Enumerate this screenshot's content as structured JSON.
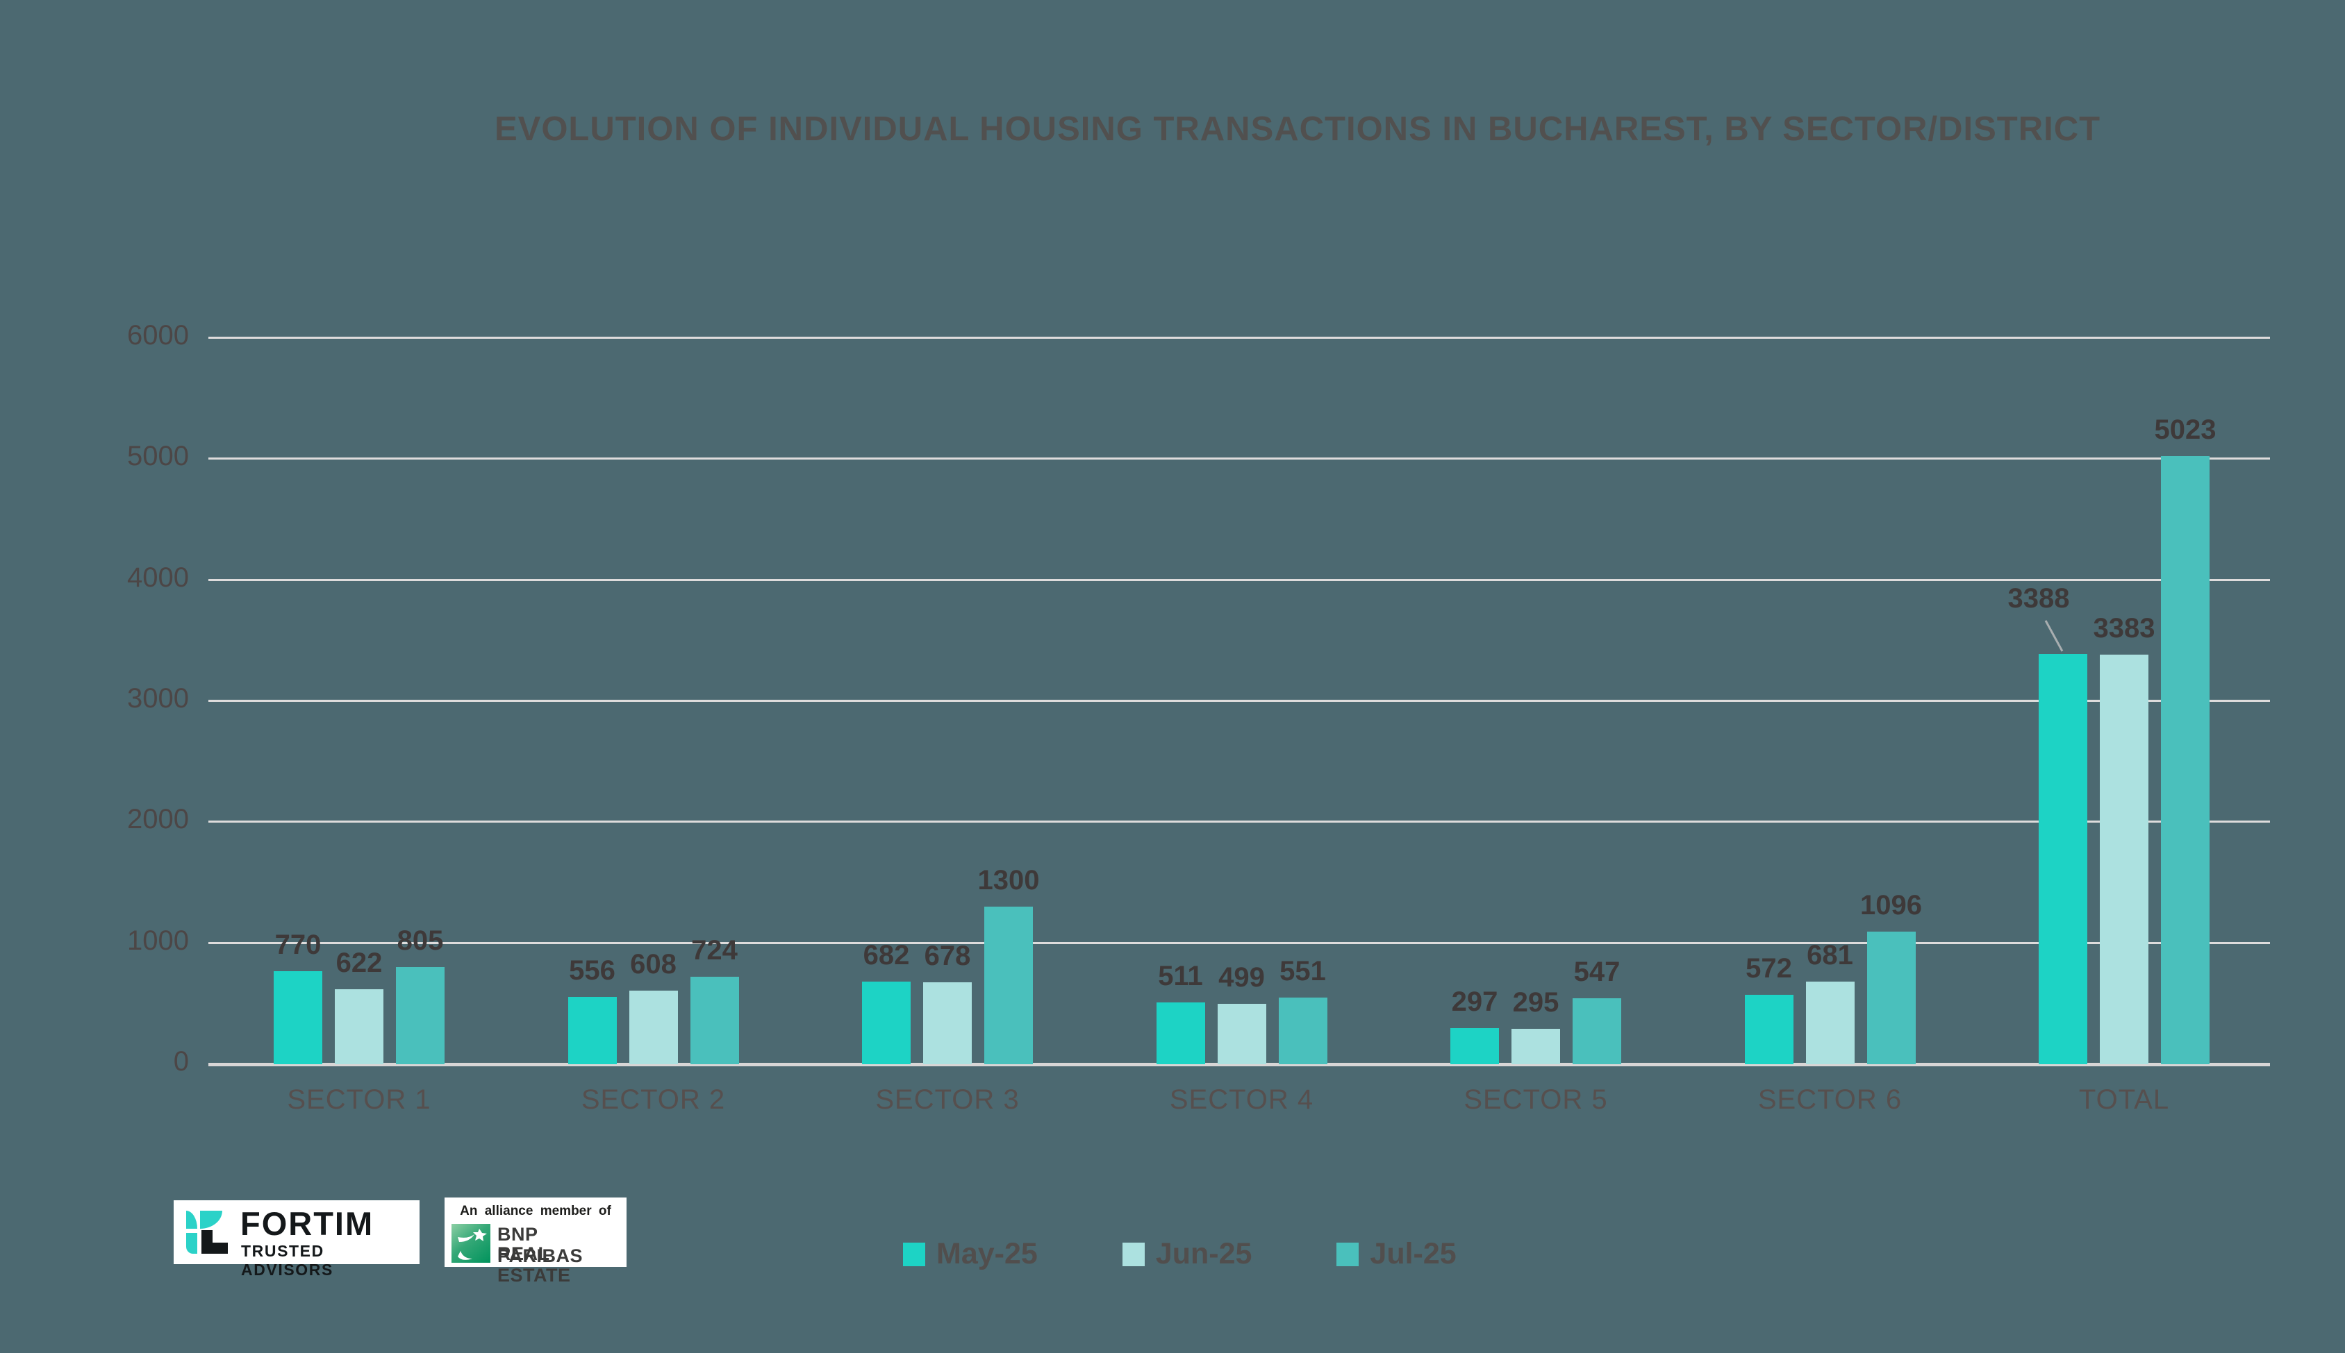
{
  "page": {
    "background_color": "#4C6971"
  },
  "title": {
    "text": "EVOLUTION OF INDIVIDUAL HOUSING TRANSACTIONS IN BUCHAREST, BY SECTOR/DISTRICT",
    "color": "#51504F"
  },
  "chart_data": {
    "type": "bar",
    "title": "EVOLUTION OF INDIVIDUAL HOUSING TRANSACTIONS IN BUCHAREST, BY SECTOR/DISTRICT",
    "categories": [
      "SECTOR 1",
      "SECTOR 2",
      "SECTOR 3",
      "SECTOR 4",
      "SECTOR 5",
      "SECTOR 6",
      "TOTAL"
    ],
    "series": [
      {
        "name": "May-25",
        "color": "#1DD3C5",
        "values": [
          770,
          556,
          682,
          511,
          297,
          572,
          3388
        ]
      },
      {
        "name": "Jun-25",
        "color": "#ACE1E0",
        "values": [
          622,
          608,
          678,
          499,
          295,
          681,
          3383
        ]
      },
      {
        "name": "Jul-25",
        "color": "#4AC0BC",
        "values": [
          805,
          724,
          1300,
          551,
          547,
          1096,
          5023
        ]
      }
    ],
    "ylim": [
      0,
      6000
    ],
    "y_ticks": [
      0,
      1000,
      2000,
      3000,
      4000,
      5000,
      6000
    ],
    "grid": "horizontal",
    "legend_position": "bottom",
    "value_labels": "above each bar",
    "callout": {
      "series": "May-25",
      "category": "TOTAL",
      "value": 3388,
      "style": "label shifted up-left with leader line to bar top"
    }
  },
  "legend": {
    "items": [
      {
        "label": "May-25",
        "color": "#1DD3C5"
      },
      {
        "label": "Jun-25",
        "color": "#ACE1E0"
      },
      {
        "label": "Jul-25",
        "color": "#4AC0BC"
      }
    ]
  },
  "axis_style": {
    "tick_label_color": "#4C4646",
    "category_label_color": "#564F4E",
    "value_label_color": "#3E3939",
    "grid_color": "#DEDCDC",
    "baseline_color": "#D8D6D6",
    "leader_line_color": "#A8AEB0"
  },
  "branding": {
    "fortim": {
      "name": "FORTIM",
      "tagline": "TRUSTED ADVISORS"
    },
    "bnp": {
      "alliance_text": "An alliance member of",
      "brand_line1": "BNP PARIBAS",
      "brand_line2": "REAL ESTATE"
    }
  }
}
